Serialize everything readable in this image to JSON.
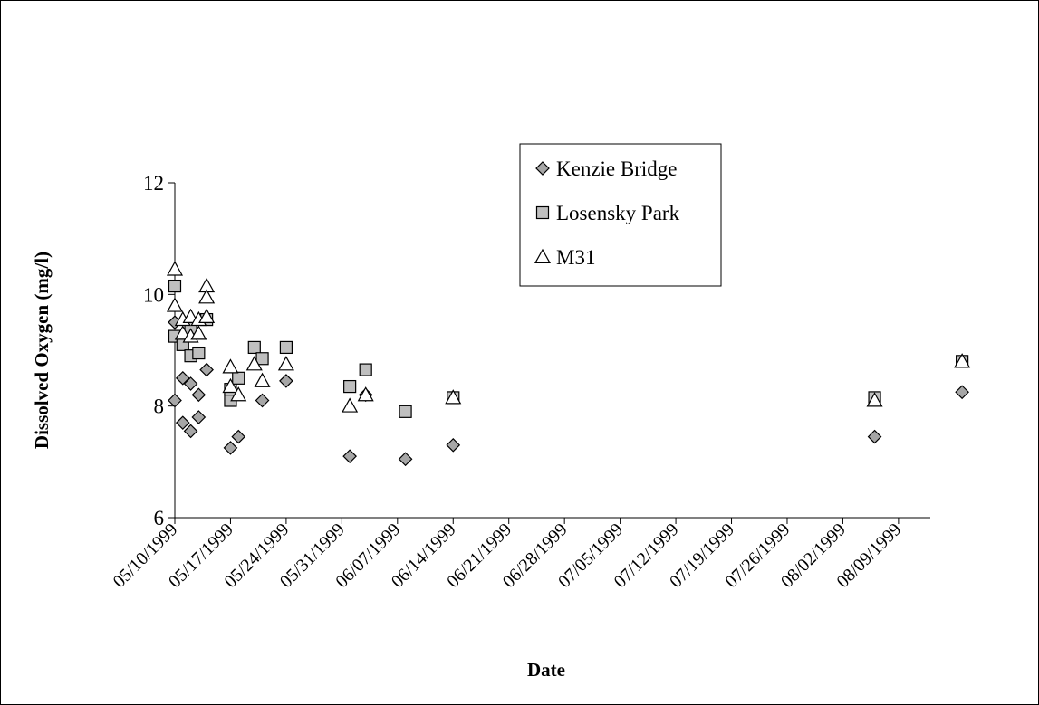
{
  "chart_data": {
    "type": "scatter",
    "xlabel": "Date",
    "ylabel": "Dissolved Oxygen (mg/l)",
    "title": "",
    "ylim": [
      6,
      12
    ],
    "yticks": [
      "6",
      "8",
      "10",
      "12"
    ],
    "xlim": [
      "05/10/1999",
      "08/13/1999"
    ],
    "xticks": [
      "05/10/1999",
      "05/17/1999",
      "05/24/1999",
      "05/31/1999",
      "06/07/1999",
      "06/14/1999",
      "06/21/1999",
      "06/28/1999",
      "07/05/1999",
      "07/12/1999",
      "07/19/1999",
      "07/26/1999",
      "08/02/1999",
      "08/09/1999"
    ],
    "grid": false,
    "legend": "inside-upper-right",
    "series": [
      {
        "name": "Kenzie Bridge",
        "marker": "diamond",
        "color": "#a6a6a6",
        "points": [
          [
            "05/10/1999",
            9.5
          ],
          [
            "05/10/1999",
            8.1
          ],
          [
            "05/11/1999",
            8.5
          ],
          [
            "05/11/1999",
            7.7
          ],
          [
            "05/12/1999",
            8.4
          ],
          [
            "05/12/1999",
            7.55
          ],
          [
            "05/13/1999",
            8.2
          ],
          [
            "05/13/1999",
            7.8
          ],
          [
            "05/14/1999",
            8.65
          ],
          [
            "05/17/1999",
            7.25
          ],
          [
            "05/18/1999",
            7.45
          ],
          [
            "05/21/1999",
            8.1
          ],
          [
            "05/24/1999",
            8.45
          ],
          [
            "06/01/1999",
            7.1
          ],
          [
            "06/03/1999",
            8.2
          ],
          [
            "06/08/1999",
            7.05
          ],
          [
            "06/14/1999",
            7.3
          ],
          [
            "08/06/1999",
            7.45
          ],
          [
            "08/17/1999",
            8.25
          ]
        ]
      },
      {
        "name": "Losensky Park",
        "marker": "square",
        "color": "#bfbfbf",
        "points": [
          [
            "05/10/1999",
            10.15
          ],
          [
            "05/10/1999",
            9.25
          ],
          [
            "05/11/1999",
            9.1
          ],
          [
            "05/12/1999",
            9.4
          ],
          [
            "05/12/1999",
            8.9
          ],
          [
            "05/13/1999",
            8.95
          ],
          [
            "05/14/1999",
            9.55
          ],
          [
            "05/17/1999",
            8.1
          ],
          [
            "05/17/1999",
            8.3
          ],
          [
            "05/18/1999",
            8.5
          ],
          [
            "05/20/1999",
            9.05
          ],
          [
            "05/21/1999",
            8.85
          ],
          [
            "05/24/1999",
            9.05
          ],
          [
            "06/01/1999",
            8.35
          ],
          [
            "06/03/1999",
            8.65
          ],
          [
            "06/08/1999",
            7.9
          ],
          [
            "06/14/1999",
            8.15
          ],
          [
            "08/06/1999",
            8.15
          ],
          [
            "08/17/1999",
            8.8
          ]
        ]
      },
      {
        "name": "M31",
        "marker": "triangle",
        "color": "#ffffff",
        "points": [
          [
            "05/10/1999",
            10.45
          ],
          [
            "05/10/1999",
            9.8
          ],
          [
            "05/11/1999",
            9.55
          ],
          [
            "05/11/1999",
            9.3
          ],
          [
            "05/12/1999",
            9.6
          ],
          [
            "05/12/1999",
            9.25
          ],
          [
            "05/13/1999",
            9.55
          ],
          [
            "05/13/1999",
            9.3
          ],
          [
            "05/14/1999",
            10.15
          ],
          [
            "05/14/1999",
            9.95
          ],
          [
            "05/14/1999",
            9.6
          ],
          [
            "05/17/1999",
            8.7
          ],
          [
            "05/17/1999",
            8.35
          ],
          [
            "05/18/1999",
            8.2
          ],
          [
            "05/20/1999",
            8.75
          ],
          [
            "05/21/1999",
            8.45
          ],
          [
            "05/24/1999",
            8.75
          ],
          [
            "06/01/1999",
            8.0
          ],
          [
            "06/03/1999",
            8.2
          ],
          [
            "06/14/1999",
            8.15
          ],
          [
            "08/06/1999",
            8.1
          ],
          [
            "08/17/1999",
            8.8
          ]
        ]
      }
    ]
  }
}
